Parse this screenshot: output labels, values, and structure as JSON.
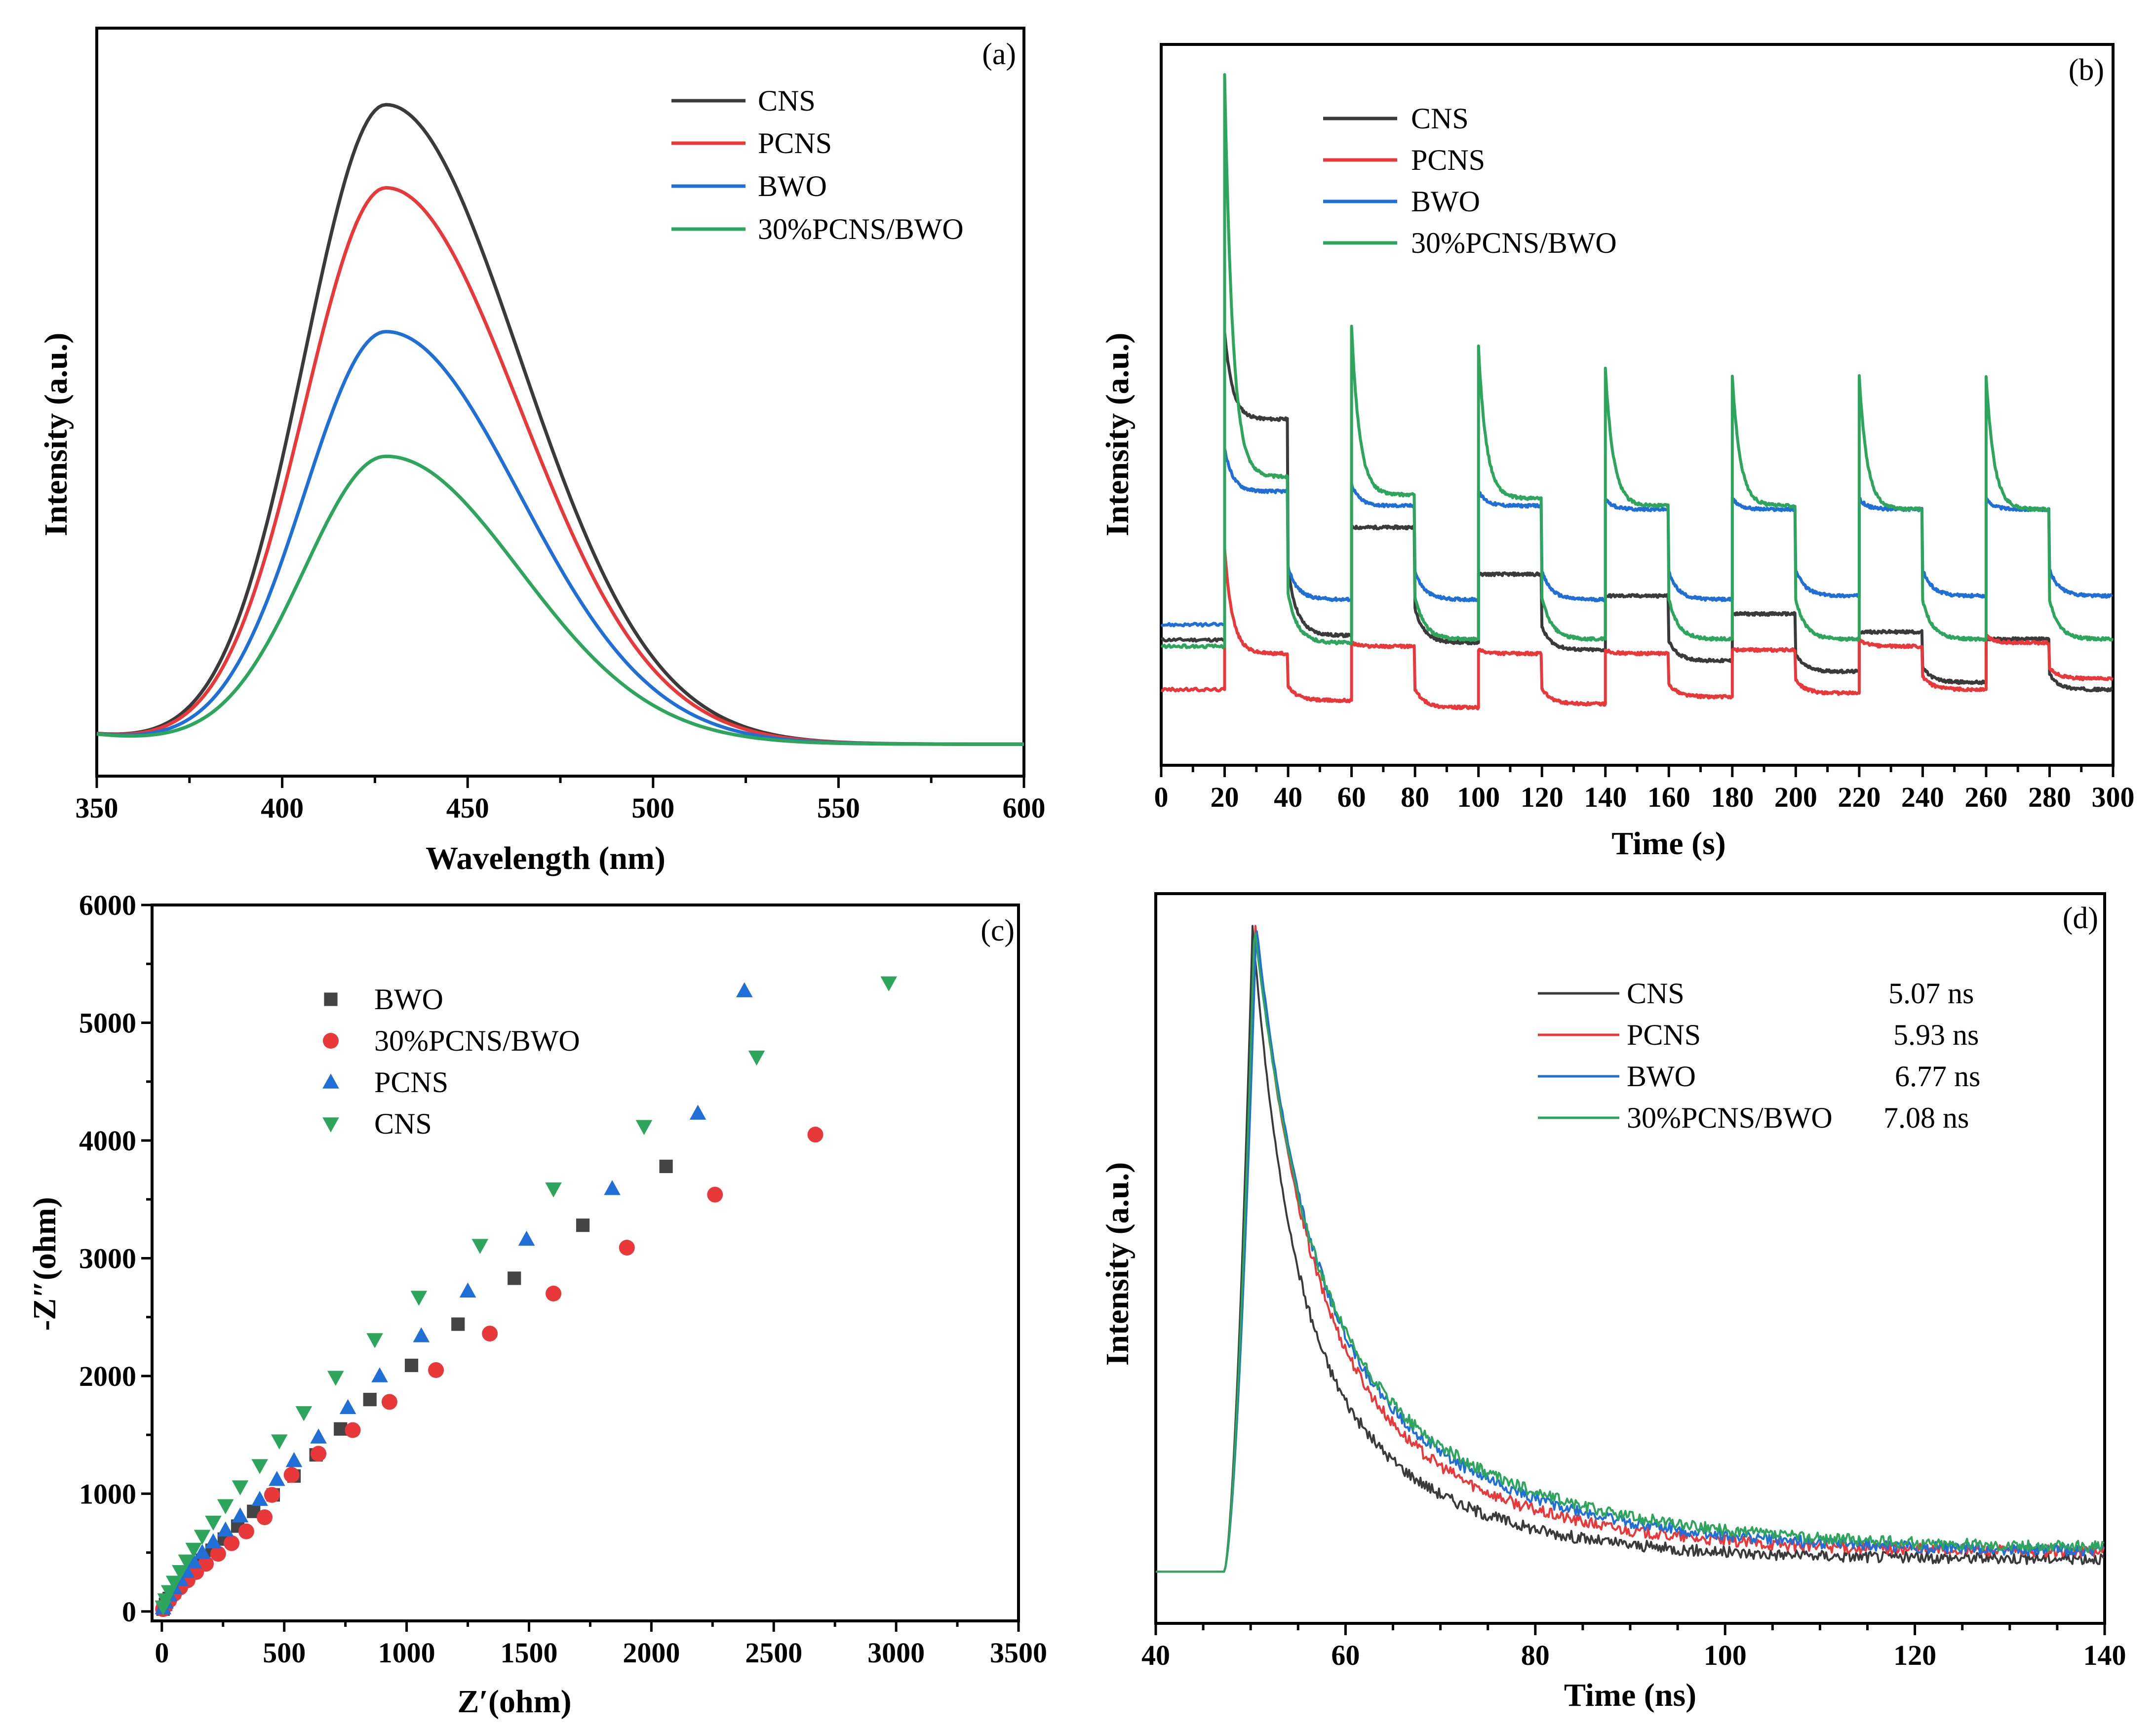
{
  "colors": {
    "CNS": "#3a3a3a",
    "PCNS": "#e8383a",
    "BWO": "#1f6fd6",
    "30%PCNS/BWO": "#2ea55c"
  },
  "chart_data": [
    {
      "id": "a",
      "panel_label": "(a)",
      "type": "line",
      "title": "",
      "xlabel": "Wavelength (nm)",
      "ylabel": "Intensity (a.u.)",
      "xlim": [
        350,
        600
      ],
      "ylim": [
        -0.05,
        1.12
      ],
      "x_ticks": [
        "350",
        "400",
        "450",
        "500",
        "550",
        "600"
      ],
      "legend": [
        "CNS",
        "PCNS",
        "BWO",
        "30%PCNS/BWO"
      ],
      "series": [
        {
          "name": "CNS",
          "peak_x": 428,
          "peak": 1.0,
          "baseline": 0.0
        },
        {
          "name": "PCNS",
          "peak_x": 428,
          "peak": 0.87,
          "baseline": 0.0
        },
        {
          "name": "BWO",
          "peak_x": 428,
          "peak": 0.645,
          "baseline": 0.0
        },
        {
          "name": "30%PCNS/BWO",
          "peak_x": 428,
          "peak": 0.45,
          "baseline": 0.0
        }
      ]
    },
    {
      "id": "b",
      "panel_label": "(b)",
      "type": "line",
      "title": "",
      "xlabel": "Time (s)",
      "ylabel": "Intensity (a.u.)",
      "xlim": [
        0,
        300
      ],
      "ylim": [
        0,
        1
      ],
      "x_ticks": [
        "0",
        "20",
        "40",
        "60",
        "80",
        "100",
        "120",
        "140",
        "160",
        "180",
        "200",
        "220",
        "240",
        "260",
        "280",
        "300"
      ],
      "legend": [
        "CNS",
        "PCNS",
        "BWO",
        "30%PCNS/BWO"
      ],
      "on_times": [
        20,
        60,
        100,
        140,
        180,
        220,
        260
      ],
      "off_times": [
        40,
        80,
        120,
        160,
        200,
        240,
        280
      ],
      "series": [
        {
          "name": "CNS",
          "dark": [
            0.174,
            0.18,
            0.17,
            0.16,
            0.145,
            0.13,
            0.115,
            0.105
          ],
          "light_top": [
            0.48,
            0.33,
            0.265,
            0.235,
            0.21,
            0.185,
            0.175
          ],
          "spike": [
            0.6,
            0,
            0,
            0,
            0,
            0,
            0
          ]
        },
        {
          "name": "PCNS",
          "dark": [
            0.105,
            0.09,
            0.08,
            0.085,
            0.095,
            0.1,
            0.105,
            0.12
          ],
          "light_top": [
            0.155,
            0.165,
            0.155,
            0.155,
            0.16,
            0.165,
            0.17
          ],
          "spike": [
            0.3,
            0.17,
            0.16,
            0.16,
            0.16,
            0.175,
            0.18
          ]
        },
        {
          "name": "BWO",
          "dark": [
            0.195,
            0.23,
            0.23,
            0.23,
            0.23,
            0.235,
            0.235,
            0.235
          ],
          "light_top": [
            0.38,
            0.36,
            0.36,
            0.355,
            0.355,
            0.355,
            0.355
          ],
          "spike": [
            0.44,
            0.39,
            0.38,
            0.37,
            0.37,
            0.37,
            0.37
          ]
        },
        {
          "name": "30%PCNS/BWO",
          "dark": [
            0.165,
            0.17,
            0.175,
            0.175,
            0.175,
            0.175,
            0.175,
            0.175
          ],
          "light_top": [
            0.4,
            0.375,
            0.37,
            0.36,
            0.36,
            0.355,
            0.355
          ],
          "spike": [
            0.96,
            0.61,
            0.58,
            0.55,
            0.54,
            0.54,
            0.54
          ]
        }
      ]
    },
    {
      "id": "c",
      "panel_label": "(c)",
      "type": "scatter",
      "title": "",
      "xlabel": "Z′(ohm)",
      "ylabel": "-Z″(ohm)",
      "xlim": [
        -40,
        3500
      ],
      "ylim": [
        -80,
        6000
      ],
      "x_ticks": [
        0,
        500,
        1000,
        1500,
        2000,
        2500,
        3000,
        3500
      ],
      "y_ticks": [
        0,
        1000,
        2000,
        3000,
        4000,
        5000,
        6000
      ],
      "legend": [
        "BWO",
        "30%PCNS/BWO",
        "PCNS",
        "CNS"
      ],
      "series": [
        {
          "name": "BWO",
          "marker": "square",
          "x": [
            5,
            15,
            30,
            50,
            75,
            100,
            130,
            165,
            205,
            255,
            310,
            375,
            455,
            540,
            630,
            730,
            850,
            1020,
            1210,
            1440,
            1720,
            2060
          ],
          "y": [
            20,
            60,
            110,
            165,
            225,
            290,
            360,
            435,
            520,
            615,
            725,
            850,
            990,
            1150,
            1330,
            1550,
            1800,
            2090,
            2440,
            2830,
            3280,
            3780
          ]
        },
        {
          "name": "30%PCNS/BWO",
          "marker": "circle",
          "x": [
            5,
            15,
            30,
            50,
            75,
            105,
            140,
            180,
            230,
            285,
            345,
            420,
            450,
            530,
            640,
            780,
            930,
            1120,
            1340,
            1600,
            1900,
            2260,
            2670
          ],
          "y": [
            20,
            50,
            95,
            150,
            205,
            265,
            335,
            405,
            490,
            580,
            680,
            800,
            990,
            1160,
            1340,
            1540,
            1780,
            2050,
            2360,
            2700,
            3090,
            3540,
            4050
          ]
        },
        {
          "name": "PCNS",
          "marker": "triangle-up",
          "x": [
            5,
            15,
            30,
            50,
            75,
            100,
            130,
            165,
            210,
            260,
            320,
            400,
            470,
            540,
            640,
            760,
            890,
            1060,
            1250,
            1490,
            1840,
            2190,
            2380
          ],
          "y": [
            30,
            80,
            140,
            200,
            270,
            340,
            420,
            500,
            590,
            690,
            810,
            950,
            1120,
            1280,
            1480,
            1730,
            2000,
            2340,
            2720,
            3160,
            3590,
            4230,
            5270
          ]
        },
        {
          "name": "CNS",
          "marker": "triangle-down",
          "x": [
            5,
            15,
            30,
            50,
            75,
            100,
            130,
            165,
            210,
            260,
            320,
            400,
            480,
            580,
            710,
            870,
            1050,
            1300,
            1600,
            1970,
            2430,
            2970
          ],
          "y": [
            40,
            100,
            170,
            250,
            340,
            430,
            530,
            640,
            760,
            900,
            1060,
            1240,
            1450,
            1690,
            1990,
            2310,
            2670,
            3110,
            3590,
            4120,
            4710,
            5340
          ]
        }
      ]
    },
    {
      "id": "d",
      "panel_label": "(d)",
      "type": "line",
      "title": "",
      "xlabel": "Time (ns)",
      "ylabel": "Intensity (a.u.)",
      "xlim": [
        40,
        140
      ],
      "ylim": [
        -0.08,
        1.05
      ],
      "x_ticks": [
        "40",
        "60",
        "80",
        "100",
        "120",
        "140"
      ],
      "legend": [
        "CNS",
        "PCNS",
        "BWO",
        "30%PCNS/BWO"
      ],
      "lifetimes": [
        "5.07 ns",
        "5.93 ns",
        "6.77 ns",
        "7.08 ns"
      ],
      "series": [
        {
          "name": "CNS",
          "rise_start": 47.2,
          "peak_x": 50.2,
          "peak": 1.0,
          "tau": 5.07,
          "tail": 0.02
        },
        {
          "name": "PCNS",
          "rise_start": 47.2,
          "peak_x": 50.5,
          "peak": 1.0,
          "tau": 5.93,
          "tail": 0.03
        },
        {
          "name": "BWO",
          "rise_start": 47.2,
          "peak_x": 50.6,
          "peak": 1.0,
          "tau": 6.77,
          "tail": 0.03
        },
        {
          "name": "30%PCNS/BWO",
          "rise_start": 47.2,
          "peak_x": 50.4,
          "peak": 1.0,
          "tau": 7.08,
          "tail": 0.035
        }
      ]
    }
  ]
}
